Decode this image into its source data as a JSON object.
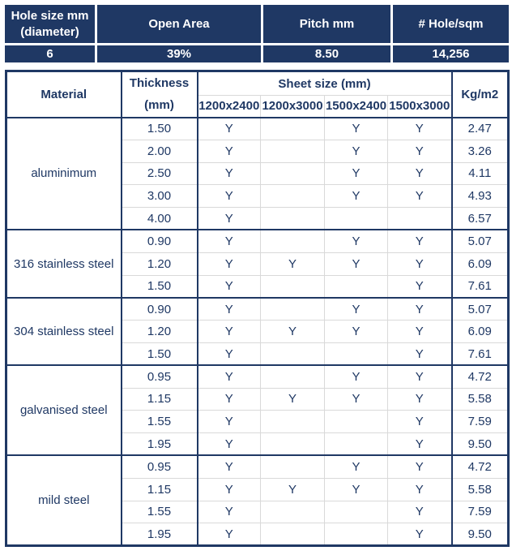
{
  "colors": {
    "navy": "#1f3864",
    "grid_gray": "#d9d9d9",
    "header_text": "#ffffff"
  },
  "summary": {
    "headers": [
      "Hole size mm (diameter)",
      "Open Area",
      "Pitch mm",
      "# Hole/sqm"
    ],
    "values": [
      "6",
      "39%",
      "8.50",
      "14,256"
    ]
  },
  "table": {
    "material_header": "Material",
    "thickness_header": "Thickness",
    "thickness_unit": "(mm)",
    "sheet_size_header": "Sheet size (mm)",
    "sheet_sizes": [
      "1200x2400",
      "1200x3000",
      "1500x2400",
      "1500x3000"
    ],
    "kg_header": "Kg/m2",
    "groups": [
      {
        "material": "aluminimum",
        "rows": [
          {
            "thickness": "1.50",
            "availability": [
              "Y",
              "",
              "Y",
              "Y"
            ],
            "kg_m2": "2.47"
          },
          {
            "thickness": "2.00",
            "availability": [
              "Y",
              "",
              "Y",
              "Y"
            ],
            "kg_m2": "3.26"
          },
          {
            "thickness": "2.50",
            "availability": [
              "Y",
              "",
              "Y",
              "Y"
            ],
            "kg_m2": "4.11"
          },
          {
            "thickness": "3.00",
            "availability": [
              "Y",
              "",
              "Y",
              "Y"
            ],
            "kg_m2": "4.93"
          },
          {
            "thickness": "4.00",
            "availability": [
              "Y",
              "",
              "",
              ""
            ],
            "kg_m2": "6.57"
          }
        ]
      },
      {
        "material": "316 stainless steel",
        "rows": [
          {
            "thickness": "0.90",
            "availability": [
              "Y",
              "",
              "Y",
              "Y"
            ],
            "kg_m2": "5.07"
          },
          {
            "thickness": "1.20",
            "availability": [
              "Y",
              "Y",
              "Y",
              "Y"
            ],
            "kg_m2": "6.09"
          },
          {
            "thickness": "1.50",
            "availability": [
              "Y",
              "",
              "",
              "Y"
            ],
            "kg_m2": "7.61"
          }
        ]
      },
      {
        "material": "304 stainless steel",
        "rows": [
          {
            "thickness": "0.90",
            "availability": [
              "Y",
              "",
              "Y",
              "Y"
            ],
            "kg_m2": "5.07"
          },
          {
            "thickness": "1.20",
            "availability": [
              "Y",
              "Y",
              "Y",
              "Y"
            ],
            "kg_m2": "6.09"
          },
          {
            "thickness": "1.50",
            "availability": [
              "Y",
              "",
              "",
              "Y"
            ],
            "kg_m2": "7.61"
          }
        ]
      },
      {
        "material": "galvanised steel",
        "rows": [
          {
            "thickness": "0.95",
            "availability": [
              "Y",
              "",
              "Y",
              "Y"
            ],
            "kg_m2": "4.72"
          },
          {
            "thickness": "1.15",
            "availability": [
              "Y",
              "Y",
              "Y",
              "Y"
            ],
            "kg_m2": "5.58"
          },
          {
            "thickness": "1.55",
            "availability": [
              "Y",
              "",
              "",
              "Y"
            ],
            "kg_m2": "7.59"
          },
          {
            "thickness": "1.95",
            "availability": [
              "Y",
              "",
              "",
              "Y"
            ],
            "kg_m2": "9.50"
          }
        ]
      },
      {
        "material": "mild steel",
        "rows": [
          {
            "thickness": "0.95",
            "availability": [
              "Y",
              "",
              "Y",
              "Y"
            ],
            "kg_m2": "4.72"
          },
          {
            "thickness": "1.15",
            "availability": [
              "Y",
              "Y",
              "Y",
              "Y"
            ],
            "kg_m2": "5.58"
          },
          {
            "thickness": "1.55",
            "availability": [
              "Y",
              "",
              "",
              "Y"
            ],
            "kg_m2": "7.59"
          },
          {
            "thickness": "1.95",
            "availability": [
              "Y",
              "",
              "",
              "Y"
            ],
            "kg_m2": "9.50"
          }
        ]
      }
    ]
  }
}
